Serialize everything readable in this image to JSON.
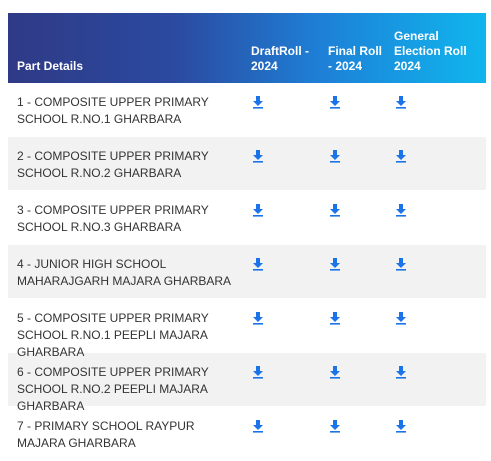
{
  "table": {
    "headers": {
      "part_details": "Part Details",
      "draft_roll": "DraftRoll - 2024",
      "final_roll": "Final Roll - 2024",
      "general_roll": "General Election Roll 2024"
    },
    "rows": [
      {
        "part": "1 - COMPOSITE UPPER PRIMARY SCHOOL R.NO.1 GHARBARA"
      },
      {
        "part": "2 - COMPOSITE UPPER PRIMARY SCHOOL R.NO.2 GHARBARA"
      },
      {
        "part": "3 - COMPOSITE UPPER PRIMARY SCHOOL R.NO.3 GHARBARA"
      },
      {
        "part": "4 - JUNIOR HIGH SCHOOL MAHARAJGARH MAJARA GHARBARA"
      },
      {
        "part": "5 - COMPOSITE UPPER PRIMARY SCHOOL R.NO.1 PEEPLI MAJARA GHARBARA"
      },
      {
        "part": "6 - COMPOSITE UPPER PRIMARY SCHOOL R.NO.2 PEEPLI MAJARA GHARBARA"
      },
      {
        "part": "7 - PRIMARY SCHOOL RAYPUR MAJARA GHARBARA"
      }
    ],
    "download_icon": "download-icon",
    "colors": {
      "header_gradient_start": "#2f3a86",
      "header_gradient_end": "#10b6ee",
      "icon": "#1a73e8",
      "stripe": "#f2f2f2"
    }
  }
}
